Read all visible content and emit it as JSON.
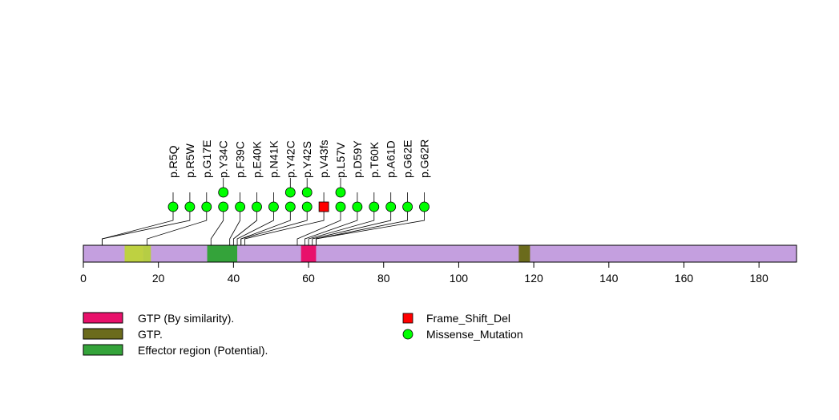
{
  "chart_data": {
    "type": "lollipop",
    "protein_length": 190,
    "x_axis": {
      "range": [
        0,
        190
      ],
      "ticks": [
        0,
        20,
        40,
        60,
        80,
        100,
        120,
        140,
        160,
        180
      ],
      "tick_labels": [
        "0",
        "20",
        "40",
        "60",
        "80",
        "100",
        "120",
        "140",
        "160",
        "180"
      ]
    },
    "backbone_color": "#c49fdf",
    "domains": [
      {
        "start": 11,
        "end": 16,
        "color": "#bed141",
        "label": ""
      },
      {
        "start": 16,
        "end": 18,
        "color": "#b6cd44",
        "label": ""
      },
      {
        "start": 33,
        "end": 41,
        "color": "#34a33a",
        "label": "Effector region (Potential)."
      },
      {
        "start": 58,
        "end": 62,
        "color": "#e8116b",
        "label": "GTP (By similarity)."
      },
      {
        "start": 116,
        "end": 119,
        "color": "#6b6b1c",
        "label": "GTP."
      }
    ],
    "mutations": [
      {
        "label": "p.R5Q",
        "position": 5,
        "count": 1,
        "type": "Missense_Mutation"
      },
      {
        "label": "p.R5W",
        "position": 5,
        "count": 1,
        "type": "Missense_Mutation"
      },
      {
        "label": "p.G17E",
        "position": 17,
        "count": 1,
        "type": "Missense_Mutation"
      },
      {
        "label": "p.Y34C",
        "position": 34,
        "count": 2,
        "type": "Missense_Mutation"
      },
      {
        "label": "p.F39C",
        "position": 39,
        "count": 1,
        "type": "Missense_Mutation"
      },
      {
        "label": "p.E40K",
        "position": 40,
        "count": 1,
        "type": "Missense_Mutation"
      },
      {
        "label": "p.N41K",
        "position": 41,
        "count": 1,
        "type": "Missense_Mutation"
      },
      {
        "label": "p.Y42C",
        "position": 42,
        "count": 2,
        "type": "Missense_Mutation"
      },
      {
        "label": "p.Y42S",
        "position": 42,
        "count": 2,
        "type": "Missense_Mutation"
      },
      {
        "label": "p.V43fs",
        "position": 43,
        "count": 1,
        "type": "Frame_Shift_Del"
      },
      {
        "label": "p.L57V",
        "position": 57,
        "count": 2,
        "type": "Missense_Mutation"
      },
      {
        "label": "p.D59Y",
        "position": 59,
        "count": 1,
        "type": "Missense_Mutation"
      },
      {
        "label": "p.T60K",
        "position": 60,
        "count": 1,
        "type": "Missense_Mutation"
      },
      {
        "label": "p.A61D",
        "position": 61,
        "count": 1,
        "type": "Missense_Mutation"
      },
      {
        "label": "p.G62E",
        "position": 62,
        "count": 1,
        "type": "Missense_Mutation"
      },
      {
        "label": "p.G62R",
        "position": 62,
        "count": 1,
        "type": "Missense_Mutation"
      }
    ],
    "legend": {
      "domains": [
        {
          "label": "GTP (By similarity).",
          "color": "#e8116b"
        },
        {
          "label": "GTP.",
          "color": "#6b6b1c"
        },
        {
          "label": "Effector region (Potential).",
          "color": "#34a33a"
        }
      ],
      "mutation_types": [
        {
          "label": "Frame_Shift_Del",
          "color": "#ff0000",
          "shape": "square"
        },
        {
          "label": "Missense_Mutation",
          "color": "#00ff00",
          "shape": "circle"
        }
      ]
    }
  }
}
